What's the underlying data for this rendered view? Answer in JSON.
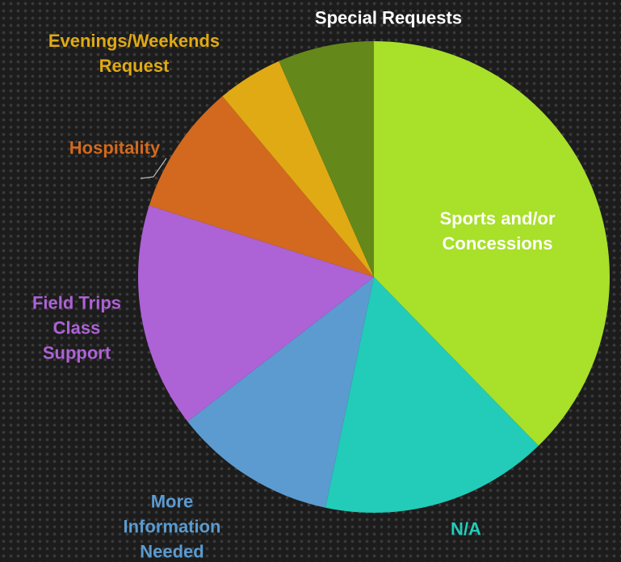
{
  "chart_data": {
    "type": "pie",
    "categories": [
      "Sports and/or\nConcessions",
      "N/A",
      "More\nInformation\nNeeded",
      "Field Trips\nClass\nSupport",
      "Hospitality",
      "Evenings/Weekends\nRequest",
      "Special Requests"
    ],
    "values": [
      37.7,
      15.6,
      11.2,
      15.4,
      9,
      4.5,
      6.6
    ],
    "colors": [
      "#a8e02a",
      "#22ccb8",
      "#5b9bd0",
      "#ad62d6",
      "#d2691e",
      "#e0aa14",
      "#65881a"
    ],
    "label_colors": [
      "#ffffff",
      "#22ccb8",
      "#5b9bd0",
      "#ad62d6",
      "#d2691e",
      "#e0aa14",
      "#ffffff"
    ]
  }
}
